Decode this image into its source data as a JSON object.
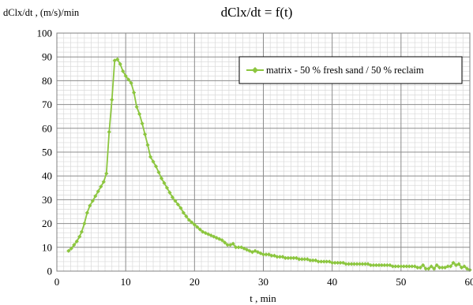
{
  "chart_data": {
    "type": "line",
    "title": "dClx/dt = f(t)",
    "ylabel": "dClx/dt , (m/s)/min",
    "xlabel": "t , min",
    "xlim": [
      0,
      60
    ],
    "ylim": [
      0,
      100
    ],
    "x_ticks": [
      "0",
      "10",
      "20",
      "30",
      "40",
      "50",
      "60"
    ],
    "y_ticks": [
      "0",
      "10",
      "20",
      "30",
      "40",
      "50",
      "60",
      "70",
      "80",
      "90",
      "100"
    ],
    "grid": true,
    "legend_position": "top-right",
    "series_color": "#8cc63f",
    "series": [
      {
        "name": "matrix - 50 % fresh sand / 50 % reclaim",
        "x": [
          1.7,
          2.1,
          2.5,
          2.9,
          3.3,
          3.6,
          4.0,
          4.4,
          4.8,
          5.2,
          5.6,
          6.0,
          6.4,
          6.8,
          7.2,
          7.6,
          8.0,
          8.4,
          8.8,
          9.2,
          9.6,
          10.0,
          10.4,
          10.8,
          11.2,
          11.6,
          12.0,
          12.4,
          12.8,
          13.2,
          13.6,
          14.0,
          14.4,
          14.8,
          15.2,
          15.6,
          16.0,
          16.4,
          16.8,
          17.2,
          17.6,
          18.0,
          18.4,
          18.8,
          19.2,
          19.6,
          20.0,
          20.4,
          20.8,
          21.2,
          21.6,
          22.0,
          22.4,
          22.8,
          23.2,
          23.6,
          24.0,
          24.4,
          24.8,
          25.2,
          25.6,
          26.0,
          26.4,
          26.8,
          27.2,
          27.6,
          28.0,
          28.4,
          28.8,
          29.2,
          29.6,
          30.0,
          30.4,
          30.8,
          31.2,
          31.6,
          32.0,
          32.4,
          32.8,
          33.2,
          33.6,
          34.0,
          34.4,
          34.8,
          35.2,
          35.6,
          36.0,
          36.4,
          36.8,
          37.2,
          37.6,
          38.0,
          38.4,
          38.8,
          39.2,
          39.6,
          40.0,
          40.4,
          40.8,
          41.2,
          41.6,
          42.0,
          42.4,
          42.8,
          43.2,
          43.6,
          44.0,
          44.4,
          44.8,
          45.2,
          45.6,
          46.0,
          46.4,
          46.8,
          47.2,
          47.6,
          48.0,
          48.4,
          48.8,
          49.2,
          49.6,
          50.0,
          50.4,
          50.8,
          51.2,
          51.6,
          52.0,
          52.4,
          52.8,
          53.2,
          53.6,
          54.0,
          54.4,
          54.8,
          55.2,
          55.6,
          56.0,
          56.4,
          56.8,
          57.2,
          57.6,
          58.0,
          58.4,
          58.8,
          59.2,
          59.6,
          60.0
        ],
        "values": [
          8.5,
          9.5,
          11,
          12.5,
          14.5,
          16.5,
          20,
          24.5,
          27.5,
          29.5,
          31.5,
          33.5,
          35.5,
          37.5,
          41,
          58.5,
          72,
          88.5,
          89,
          87,
          84,
          82,
          80.5,
          79,
          75,
          69,
          66,
          62,
          57.5,
          53,
          48,
          46,
          44,
          41.5,
          39,
          37,
          35,
          33,
          31,
          29.5,
          28,
          26.5,
          24.5,
          23,
          21.5,
          20.5,
          19.5,
          18.5,
          17.5,
          16.5,
          16,
          15.5,
          15,
          14.5,
          14,
          13.5,
          13,
          12,
          11,
          11,
          11.5,
          10,
          10,
          10,
          9.5,
          9,
          8.5,
          8,
          8.5,
          8,
          7.5,
          7,
          7,
          7,
          6.5,
          6.5,
          6,
          6,
          6,
          5.5,
          5.5,
          5.5,
          5.5,
          5.5,
          5,
          5,
          5,
          5,
          4.5,
          4.5,
          4.5,
          4,
          4,
          4,
          4,
          4,
          3.5,
          3.5,
          3.5,
          3.5,
          3.5,
          3,
          3,
          3,
          3,
          3,
          3,
          3,
          3,
          3,
          2.5,
          2.5,
          2.5,
          2.5,
          2.5,
          2.5,
          2.5,
          2.5,
          2,
          2,
          2,
          2,
          2,
          2,
          2,
          2,
          2,
          1.5,
          1.5,
          2.5,
          1,
          1,
          2,
          1,
          2.5,
          1.5,
          1.5,
          1.5,
          2,
          2,
          3.5,
          2.5,
          3,
          1.5,
          2,
          1,
          0.5
        ]
      }
    ]
  }
}
